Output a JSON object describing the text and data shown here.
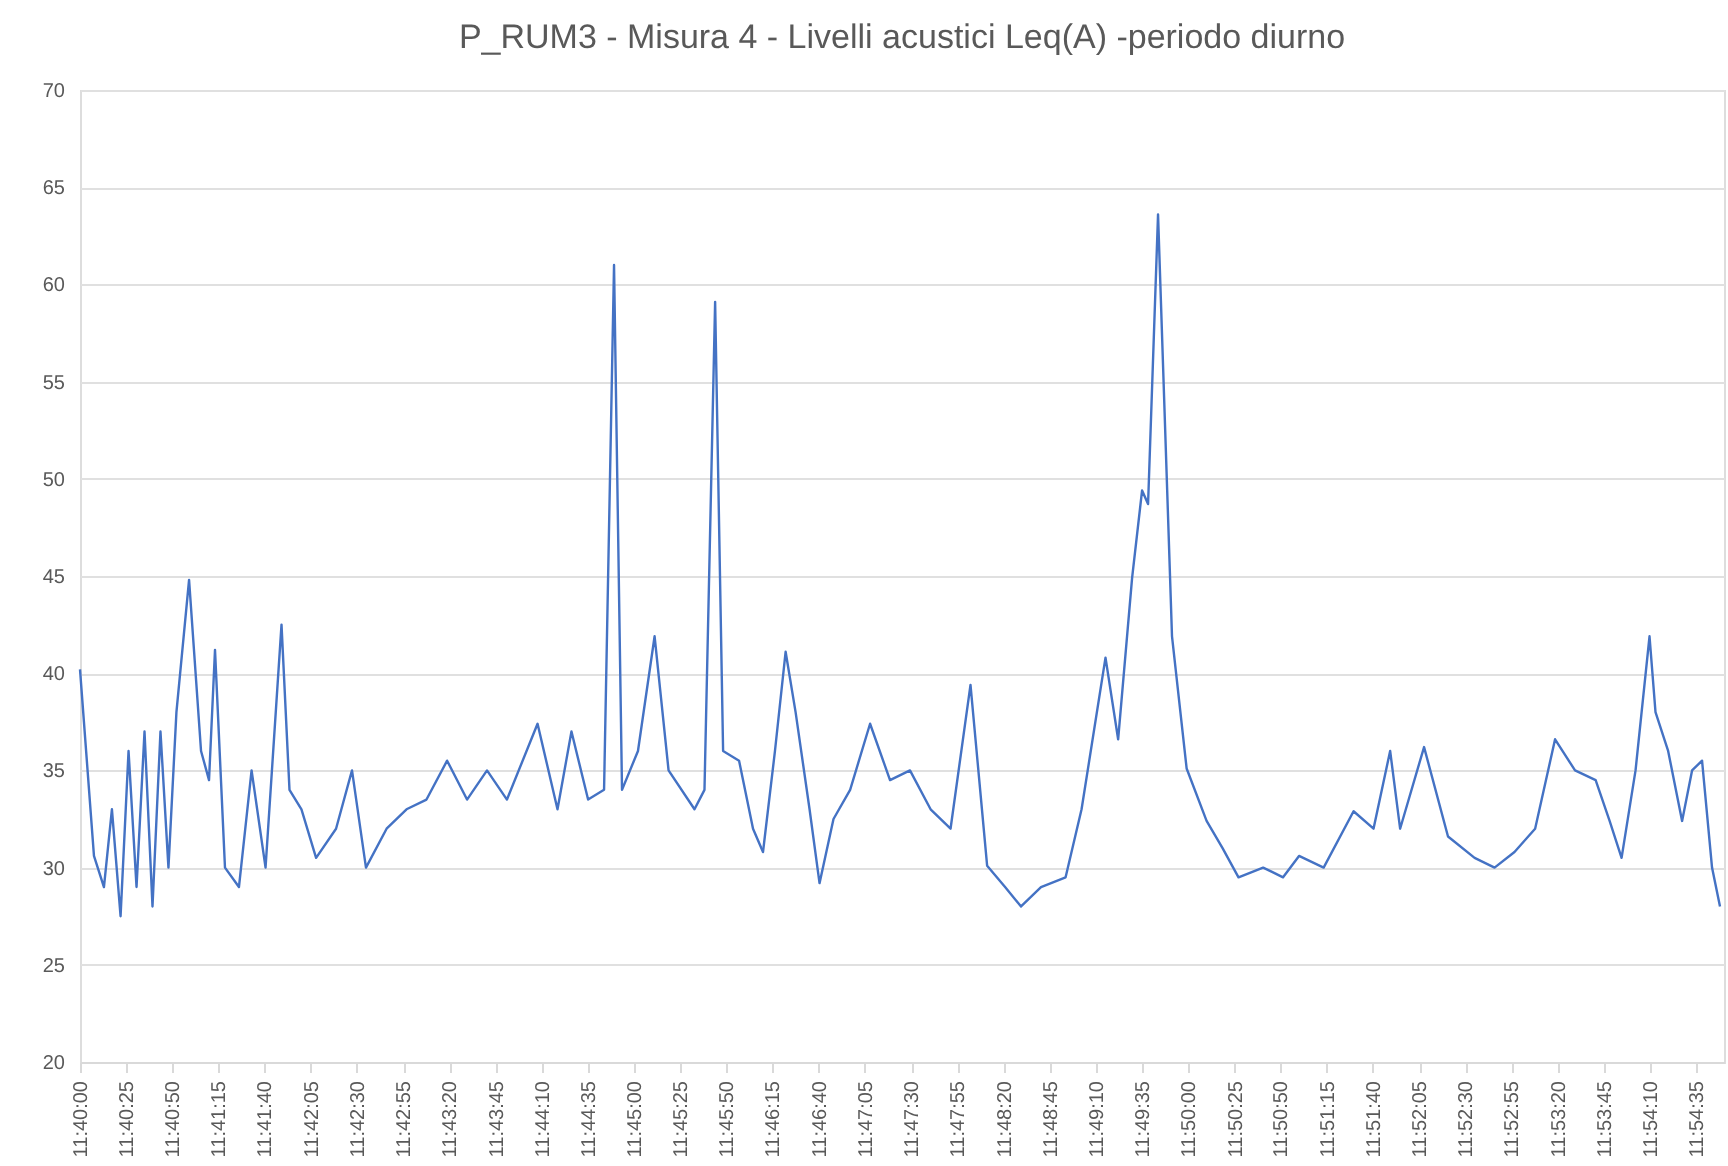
{
  "chart_data": {
    "type": "line",
    "title": "P_RUM3 - Misura 4 - Livelli acustici Leq(A) -periodo diurno",
    "x": [
      11.6667,
      11.6688,
      11.6703,
      11.6715,
      11.6728,
      11.674,
      11.6752,
      11.6764,
      11.6776,
      11.6788,
      11.68,
      11.6812,
      11.6831,
      11.6849,
      11.6861,
      11.687,
      11.6885,
      11.6906,
      11.6925,
      11.6946,
      11.697,
      11.6982,
      11.7,
      11.7022,
      11.7052,
      11.7076,
      11.7097,
      11.7128,
      11.7158,
      11.7188,
      11.7219,
      11.7249,
      11.7279,
      11.7309,
      11.7355,
      11.7385,
      11.7406,
      11.7431,
      11.7455,
      11.747,
      11.7482,
      11.7506,
      11.7531,
      11.7552,
      11.7591,
      11.7606,
      11.7622,
      11.7634,
      11.7658,
      11.7679,
      11.7694,
      11.7712,
      11.7728,
      11.7743,
      11.7764,
      11.7779,
      11.78,
      11.7825,
      11.7855,
      11.7885,
      11.7915,
      11.7946,
      11.7976,
      11.8006,
      11.8031,
      11.8058,
      11.8082,
      11.8112,
      11.8149,
      11.8173,
      11.8209,
      11.8228,
      11.8249,
      11.8264,
      11.8273,
      11.8288,
      11.8309,
      11.8331,
      11.8361,
      11.8385,
      11.8409,
      11.8446,
      11.8476,
      11.85,
      11.8537,
      11.8582,
      11.8612,
      11.8637,
      11.8652,
      11.8688,
      11.8724,
      11.8764,
      11.8794,
      11.8824,
      11.8855,
      11.8885,
      11.8915,
      11.8946,
      11.8967,
      11.8985,
      11.9006,
      11.9027,
      11.9036,
      11.9055,
      11.9076,
      11.9091,
      11.9106,
      11.9121,
      11.9133
    ],
    "series": [
      {
        "color": "#4472c4",
        "values": [
          40.2,
          30.6,
          29,
          33,
          27.5,
          36,
          29,
          37,
          28,
          37,
          30,
          38,
          44.8,
          36,
          34.5,
          41.2,
          30,
          29,
          35,
          30,
          42.5,
          34,
          33,
          30.5,
          32,
          35,
          30,
          32,
          33,
          33.5,
          35.5,
          33.5,
          35,
          33.5,
          37.4,
          33,
          37,
          33.5,
          34,
          61,
          34,
          36,
          41.9,
          35,
          33,
          34,
          59.1,
          36,
          35.5,
          32,
          30.8,
          36,
          41.1,
          38,
          33,
          29.2,
          32.5,
          34,
          37.4,
          34.5,
          35,
          33,
          32,
          39.4,
          30.1,
          29,
          28,
          29,
          29.5,
          33,
          40.8,
          36.6,
          44.9,
          49.4,
          48.7,
          63.6,
          41.9,
          35.1,
          32.4,
          31,
          29.5,
          30,
          29.5,
          30.6,
          30,
          32.9,
          32,
          36,
          32,
          36.2,
          31.6,
          30.5,
          30,
          30.8,
          32,
          36.6,
          35,
          34.5,
          32.4,
          30.5,
          35,
          41.9,
          38,
          36,
          32.4,
          35,
          35.5,
          30,
          28
        ]
      }
    ],
    "xlim": [
      11.6667,
      11.9139
    ],
    "xticks": [
      {
        "value": 11.6667,
        "label": "11:40:00"
      },
      {
        "value": 11.6736,
        "label": "11:40:25"
      },
      {
        "value": 11.6806,
        "label": "11:40:50"
      },
      {
        "value": 11.6875,
        "label": "11:41:15"
      },
      {
        "value": 11.6944,
        "label": "11:41:40"
      },
      {
        "value": 11.7014,
        "label": "11:42:05"
      },
      {
        "value": 11.7083,
        "label": "11:42:30"
      },
      {
        "value": 11.7153,
        "label": "11:42:55"
      },
      {
        "value": 11.7222,
        "label": "11:43:20"
      },
      {
        "value": 11.7292,
        "label": "11:43:45"
      },
      {
        "value": 11.7361,
        "label": "11:44:10"
      },
      {
        "value": 11.7431,
        "label": "11:44:35"
      },
      {
        "value": 11.75,
        "label": "11:45:00"
      },
      {
        "value": 11.7569,
        "label": "11:45:25"
      },
      {
        "value": 11.7639,
        "label": "11:45:50"
      },
      {
        "value": 11.7708,
        "label": "11:46:15"
      },
      {
        "value": 11.7778,
        "label": "11:46:40"
      },
      {
        "value": 11.7847,
        "label": "11:47:05"
      },
      {
        "value": 11.7917,
        "label": "11:47:30"
      },
      {
        "value": 11.7986,
        "label": "11:47:55"
      },
      {
        "value": 11.8056,
        "label": "11:48:20"
      },
      {
        "value": 11.8125,
        "label": "11:48:45"
      },
      {
        "value": 11.8194,
        "label": "11:49:10"
      },
      {
        "value": 11.8264,
        "label": "11:49:35"
      },
      {
        "value": 11.8333,
        "label": "11:50:00"
      },
      {
        "value": 11.8403,
        "label": "11:50:25"
      },
      {
        "value": 11.8472,
        "label": "11:50:50"
      },
      {
        "value": 11.8542,
        "label": "11:51:15"
      },
      {
        "value": 11.8611,
        "label": "11:51:40"
      },
      {
        "value": 11.8681,
        "label": "11:52:05"
      },
      {
        "value": 11.875,
        "label": "11:52:30"
      },
      {
        "value": 11.8819,
        "label": "11:52:55"
      },
      {
        "value": 11.8889,
        "label": "11:53:20"
      },
      {
        "value": 11.8958,
        "label": "11:53:45"
      },
      {
        "value": 11.9028,
        "label": "11:54:10"
      },
      {
        "value": 11.9097,
        "label": "11:54:35"
      }
    ],
    "ylim": [
      20,
      70
    ],
    "yticks": [
      20,
      25,
      30,
      35,
      40,
      45,
      50,
      55,
      60,
      65,
      70
    ],
    "grid": "y"
  }
}
